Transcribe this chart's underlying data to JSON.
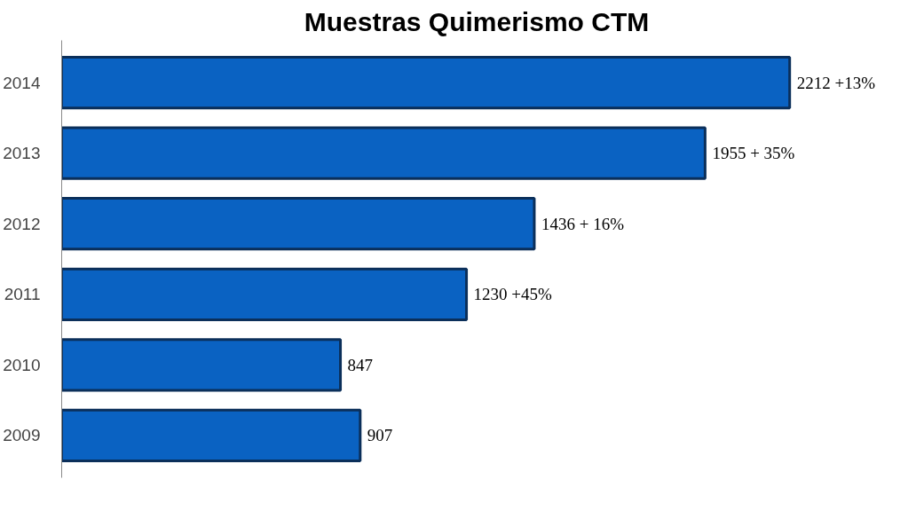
{
  "chart_data": {
    "type": "bar",
    "orientation": "horizontal",
    "title": "Muestras Quimerismo CTM",
    "categories": [
      "2014",
      "2013",
      "2012",
      "2011",
      "2010",
      "2009"
    ],
    "values": [
      2212,
      1955,
      1436,
      1230,
      847,
      907
    ],
    "value_labels": [
      "2212 +13%",
      "1955 + 35%",
      "1436 + 16%",
      "1230 +45%",
      "847",
      "907"
    ],
    "color": "#0a62c2",
    "tick_labels": "y",
    "grid": false
  }
}
